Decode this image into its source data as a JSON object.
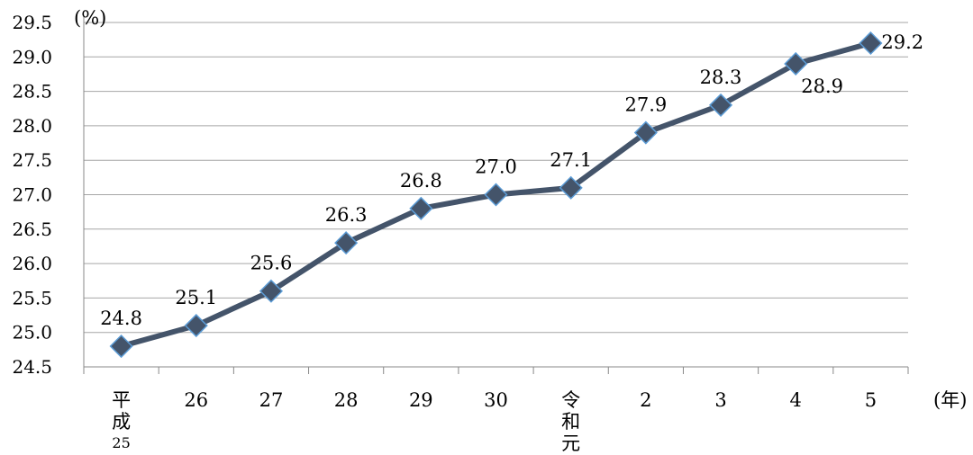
{
  "chart_data": {
    "type": "line",
    "y_unit_label": "(%)",
    "x_unit_label": "(年)",
    "ylim": [
      24.5,
      29.5
    ],
    "y_step": 0.5,
    "grid": "horizontal",
    "categories": [
      {
        "lines": [
          "平",
          "成"
        ],
        "sub": "25"
      },
      {
        "lines": [
          "26"
        ]
      },
      {
        "lines": [
          "27"
        ]
      },
      {
        "lines": [
          "28"
        ]
      },
      {
        "lines": [
          "29"
        ]
      },
      {
        "lines": [
          "30"
        ]
      },
      {
        "lines": [
          "令",
          "和",
          "元"
        ]
      },
      {
        "lines": [
          "2"
        ]
      },
      {
        "lines": [
          "3"
        ]
      },
      {
        "lines": [
          "4"
        ]
      },
      {
        "lines": [
          "5"
        ]
      }
    ],
    "series": [
      {
        "values": [
          24.8,
          25.1,
          25.6,
          26.3,
          26.8,
          27.0,
          27.1,
          27.9,
          28.3,
          28.9,
          29.2
        ],
        "labels": [
          "24.8",
          "25.1",
          "25.6",
          "26.3",
          "26.8",
          "27.0",
          "27.1",
          "27.9",
          "28.3",
          "28.9",
          "29.2"
        ],
        "label_positions": [
          "above",
          "above",
          "above",
          "above",
          "above",
          "above",
          "above",
          "above",
          "above",
          "below",
          "right"
        ]
      }
    ],
    "colors": {
      "line": "#44546a",
      "marker_fill": "#44546a",
      "marker_stroke": "#5b9bd5"
    }
  }
}
